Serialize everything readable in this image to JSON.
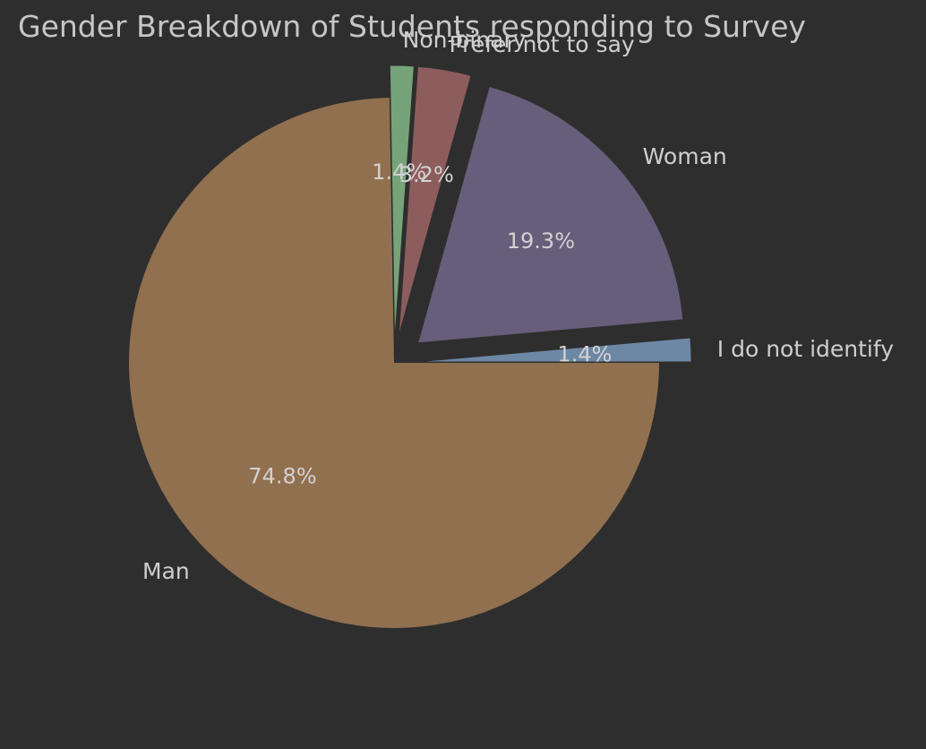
{
  "chart_data": {
    "type": "pie",
    "title": "Gender Breakdown of Students responding to Survey",
    "slices": [
      {
        "label": "I do not identify",
        "value": 1.4,
        "pct_label": "1.4%",
        "color": "#6d88a5",
        "exploded": true
      },
      {
        "label": "Woman",
        "value": 19.3,
        "pct_label": "19.3%",
        "color": "#675e7b",
        "exploded": true
      },
      {
        "label": "Prefer not to say",
        "value": 3.2,
        "pct_label": "3.2%",
        "color": "#8d5c5c",
        "exploded": true
      },
      {
        "label": "Non-binary",
        "value": 1.4,
        "pct_label": "1.4%",
        "color": "#77a378",
        "exploded": true
      },
      {
        "label": "Man",
        "value": 74.8,
        "pct_label": "74.8%",
        "color": "#91704f",
        "exploded": false
      }
    ],
    "legend": "none"
  }
}
